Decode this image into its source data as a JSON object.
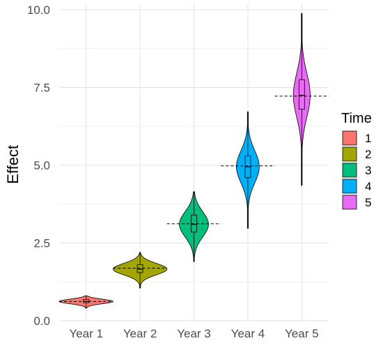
{
  "chart_data": {
    "type": "violin",
    "xlabel": "",
    "ylabel": "Effect",
    "ylim": [
      0,
      10.2
    ],
    "y_ticks": [
      {
        "value": 0,
        "label": "0.0"
      },
      {
        "value": 2.5,
        "label": "2.5"
      },
      {
        "value": 5,
        "label": "5.0"
      },
      {
        "value": 7.5,
        "label": "7.5"
      },
      {
        "value": 10,
        "label": "10.0"
      }
    ],
    "categories": [
      "Year 1",
      "Year 2",
      "Year 3",
      "Year 4",
      "Year 5"
    ],
    "series": [
      {
        "category": "Year 1",
        "time": "1",
        "color": "#F8766D",
        "min": 0.4,
        "q1": 0.58,
        "median": 0.62,
        "q3": 0.68,
        "max": 0.8,
        "reference": 0.62
      },
      {
        "category": "Year 2",
        "time": "2",
        "color": "#A3A500",
        "min": 1.05,
        "q1": 1.55,
        "median": 1.66,
        "q3": 1.8,
        "max": 2.2,
        "reference": 1.69
      },
      {
        "category": "Year 3",
        "time": "3",
        "color": "#00BF7D",
        "min": 1.9,
        "q1": 2.85,
        "median": 3.1,
        "q3": 3.4,
        "max": 4.15,
        "reference": 3.12
      },
      {
        "category": "Year 4",
        "time": "4",
        "color": "#00B0F6",
        "min": 2.97,
        "q1": 4.6,
        "median": 4.95,
        "q3": 5.3,
        "max": 6.72,
        "reference": 4.98
      },
      {
        "category": "Year 5",
        "time": "5",
        "color": "#E76BF3",
        "min": 4.35,
        "q1": 6.8,
        "median": 7.25,
        "q3": 7.75,
        "max": 9.88,
        "reference": 7.22
      }
    ],
    "reference_line_style": "dashed",
    "grid": true,
    "legend": {
      "title": "Time",
      "placement": "right",
      "entries": [
        {
          "label": "1",
          "color": "#F8766D"
        },
        {
          "label": "2",
          "color": "#A3A500"
        },
        {
          "label": "3",
          "color": "#00BF7D"
        },
        {
          "label": "4",
          "color": "#00B0F6"
        },
        {
          "label": "5",
          "color": "#E76BF3"
        }
      ]
    }
  }
}
